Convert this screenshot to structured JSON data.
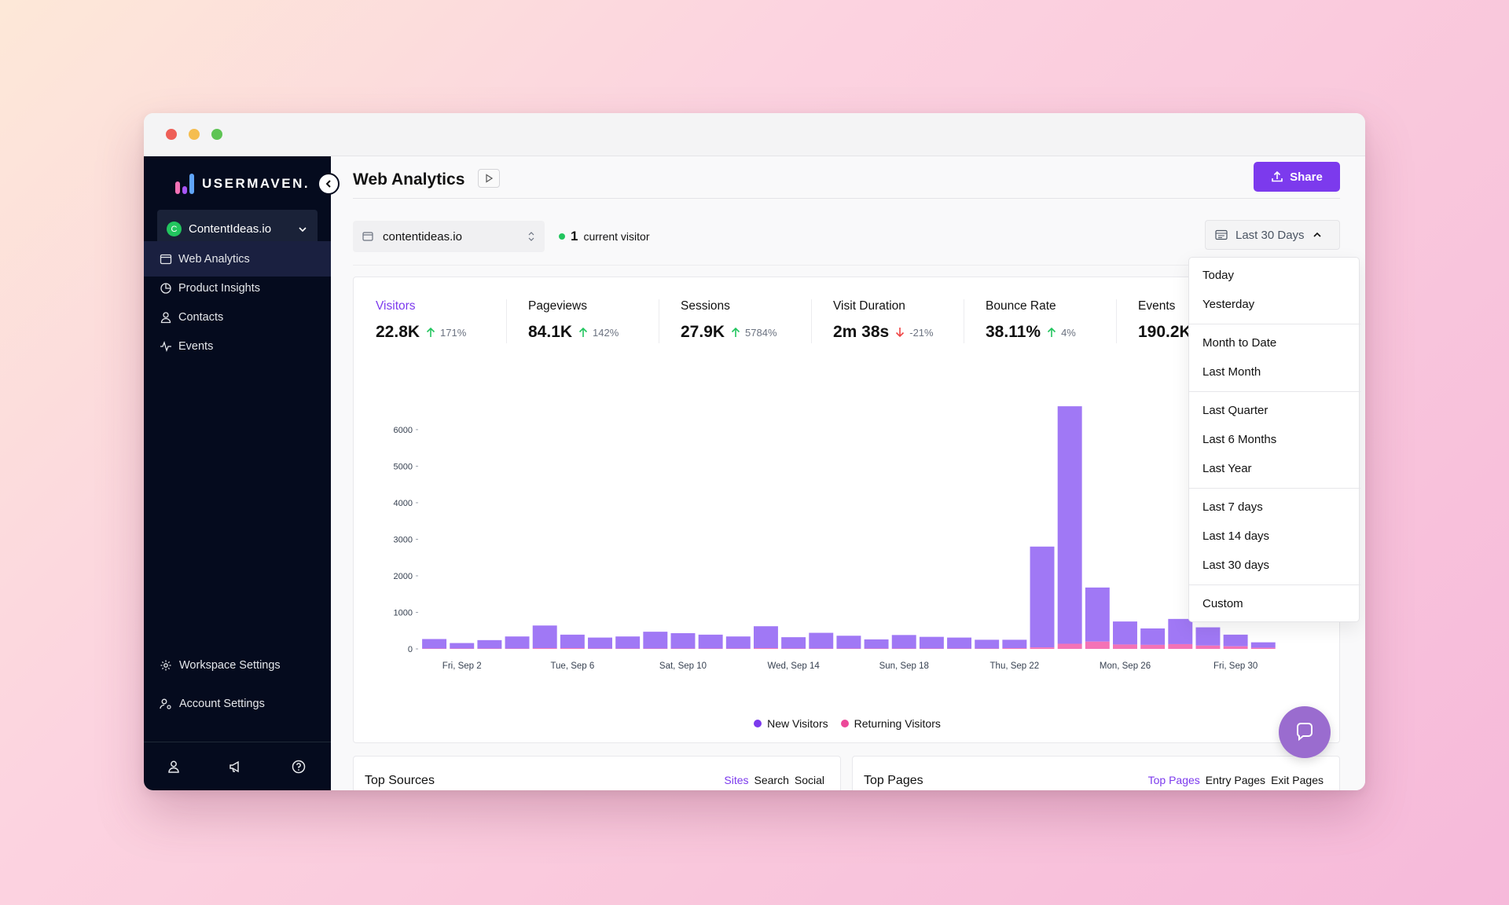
{
  "brand": {
    "name": "USERMAVEN.",
    "logo_colors": [
      "#f472b6",
      "#a855f7",
      "#60a5fa"
    ]
  },
  "workspace": {
    "initial": "C",
    "name": "ContentIdeas.io"
  },
  "sidebar": {
    "items": [
      {
        "label": "Web Analytics",
        "icon": "browser-icon",
        "active": true
      },
      {
        "label": "Product Insights",
        "icon": "pie-chart-icon"
      },
      {
        "label": "Contacts",
        "icon": "user-icon"
      },
      {
        "label": "Events",
        "icon": "activity-icon"
      }
    ],
    "bottom_items": [
      {
        "label": "Workspace Settings",
        "icon": "gear-icon"
      },
      {
        "label": "Account Settings",
        "icon": "user-gear-icon"
      }
    ],
    "footer_icons": [
      "user-icon",
      "megaphone-icon",
      "help-circle-icon"
    ]
  },
  "header": {
    "title": "Web Analytics",
    "share_label": "Share"
  },
  "filters": {
    "domain": "contentideas.io",
    "current_visitors": "1",
    "current_visitors_label": "current visitor",
    "date_range": "Last 30 Days"
  },
  "kpis": [
    {
      "label": "Visitors",
      "value": "22.8K",
      "delta": "171%",
      "direction": "up",
      "active": true
    },
    {
      "label": "Pageviews",
      "value": "84.1K",
      "delta": "142%",
      "direction": "up"
    },
    {
      "label": "Sessions",
      "value": "27.9K",
      "delta": "5784%",
      "direction": "up"
    },
    {
      "label": "Visit Duration",
      "value": "2m 38s",
      "delta": "-21%",
      "direction": "down"
    },
    {
      "label": "Bounce Rate",
      "value": "38.11%",
      "delta": "4%",
      "direction": "up"
    },
    {
      "label": "Events",
      "value": "190.2K"
    }
  ],
  "chart_data": {
    "type": "bar",
    "stacked": true,
    "categories": [
      "Sep 1",
      "Sep 2",
      "Sep 3",
      "Sep 4",
      "Sep 5",
      "Sep 6",
      "Sep 7",
      "Sep 8",
      "Sep 9",
      "Sep 10",
      "Sep 11",
      "Sep 12",
      "Sep 13",
      "Sep 14",
      "Sep 15",
      "Sep 16",
      "Sep 17",
      "Sep 18",
      "Sep 19",
      "Sep 20",
      "Sep 21",
      "Sep 22",
      "Sep 23",
      "Sep 24",
      "Sep 25",
      "Sep 26",
      "Sep 27",
      "Sep 28",
      "Sep 29",
      "Sep 30",
      "Oct 1",
      "Oct 2"
    ],
    "x_tick_labels": [
      "Fri, Sep 2",
      "Tue, Sep 6",
      "Sat, Sep 10",
      "Wed, Sep 14",
      "Sun, Sep 18",
      "Thu, Sep 22",
      "Mon, Sep 26",
      "Fri, Sep 30"
    ],
    "series": [
      {
        "name": "New Visitors",
        "color": "#a078f5",
        "values": [
          260,
          150,
          230,
          330,
          620,
          370,
          300,
          330,
          460,
          420,
          380,
          330,
          600,
          310,
          430,
          350,
          250,
          370,
          320,
          300,
          240,
          230,
          2760,
          6500,
          1480,
          630,
          450,
          690,
          500,
          320,
          150,
          0
        ]
      },
      {
        "name": "Returning Visitors",
        "color": "#f472b6",
        "values": [
          10,
          10,
          10,
          10,
          20,
          20,
          10,
          10,
          10,
          10,
          10,
          10,
          20,
          10,
          10,
          10,
          10,
          10,
          10,
          10,
          10,
          20,
          40,
          140,
          200,
          120,
          110,
          130,
          90,
          70,
          30,
          0
        ]
      }
    ],
    "ylim": [
      0,
      6600
    ],
    "y_ticks": [
      0,
      1000,
      2000,
      3000,
      4000,
      5000,
      6000
    ],
    "legend_position": "bottom"
  },
  "dropdown": {
    "groups": [
      [
        "Today",
        "Yesterday"
      ],
      [
        "Month to Date",
        "Last Month"
      ],
      [
        "Last Quarter",
        "Last 6 Months",
        "Last Year"
      ],
      [
        "Last 7 days",
        "Last 14 days",
        "Last 30 days"
      ],
      [
        "Custom"
      ]
    ]
  },
  "panels": [
    {
      "title": "Top Sources",
      "tabs": [
        "Sites",
        "Search",
        "Social"
      ]
    },
    {
      "title": "Top Pages",
      "tabs": [
        "Top Pages",
        "Entry Pages",
        "Exit Pages"
      ]
    }
  ],
  "colors": {
    "accent": "#7c3aed",
    "up": "#22c55e",
    "down": "#ef4444",
    "sidebar_bg": "#050b1e"
  }
}
